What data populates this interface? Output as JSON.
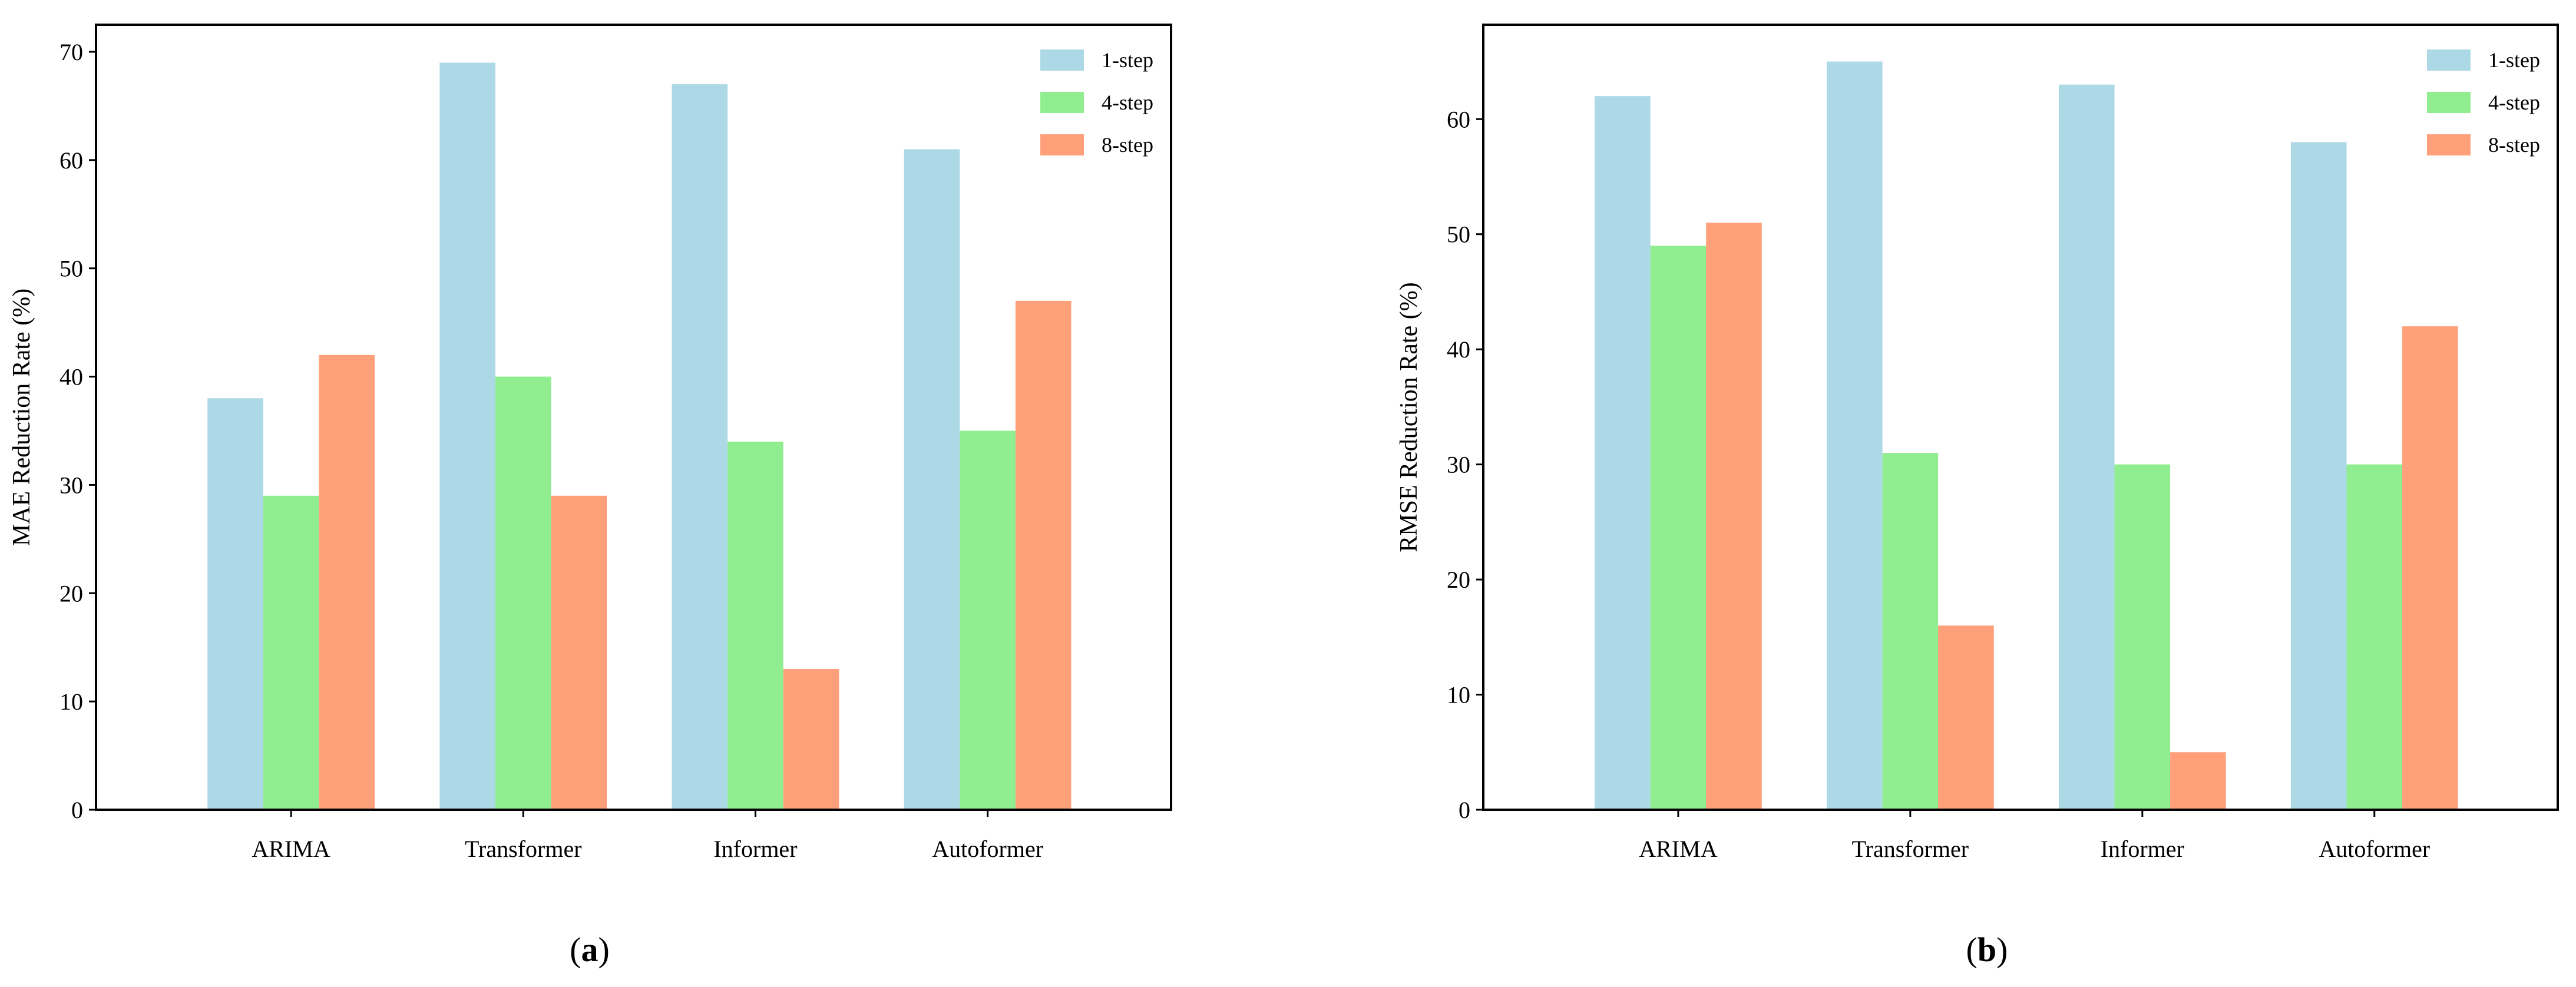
{
  "chart_data": [
    {
      "type": "bar",
      "panel_label": "a",
      "title": "",
      "xlabel": "",
      "ylabel": "MAE Reduction Rate (%)",
      "categories": [
        "ARIMA",
        "Transformer",
        "Informer",
        "Autoformer"
      ],
      "series": [
        {
          "name": "1-step",
          "values": [
            38,
            69,
            67,
            61
          ]
        },
        {
          "name": "4-step",
          "values": [
            29,
            40,
            34,
            35
          ]
        },
        {
          "name": "8-step",
          "values": [
            42,
            29,
            13,
            47
          ]
        }
      ],
      "ylim": [
        0,
        72.5
      ],
      "yticks": [
        0,
        10,
        20,
        30,
        40,
        50,
        60,
        70
      ],
      "legend_position": "top-right"
    },
    {
      "type": "bar",
      "panel_label": "b",
      "title": "",
      "xlabel": "",
      "ylabel": "RMSE Reduction Rate (%)",
      "categories": [
        "ARIMA",
        "Transformer",
        "Informer",
        "Autoformer"
      ],
      "series": [
        {
          "name": "1-step",
          "values": [
            62,
            65,
            63,
            58
          ]
        },
        {
          "name": "4-step",
          "values": [
            49,
            31,
            30,
            30
          ]
        },
        {
          "name": "8-step",
          "values": [
            51,
            16,
            5,
            42
          ]
        }
      ],
      "ylim": [
        0,
        68.2
      ],
      "yticks": [
        0,
        10,
        20,
        30,
        40,
        50,
        60
      ],
      "legend_position": "top-right"
    }
  ],
  "colors": {
    "1-step": "#add8e6",
    "4-step": "#90ee90",
    "8-step": "#ffa07a"
  }
}
